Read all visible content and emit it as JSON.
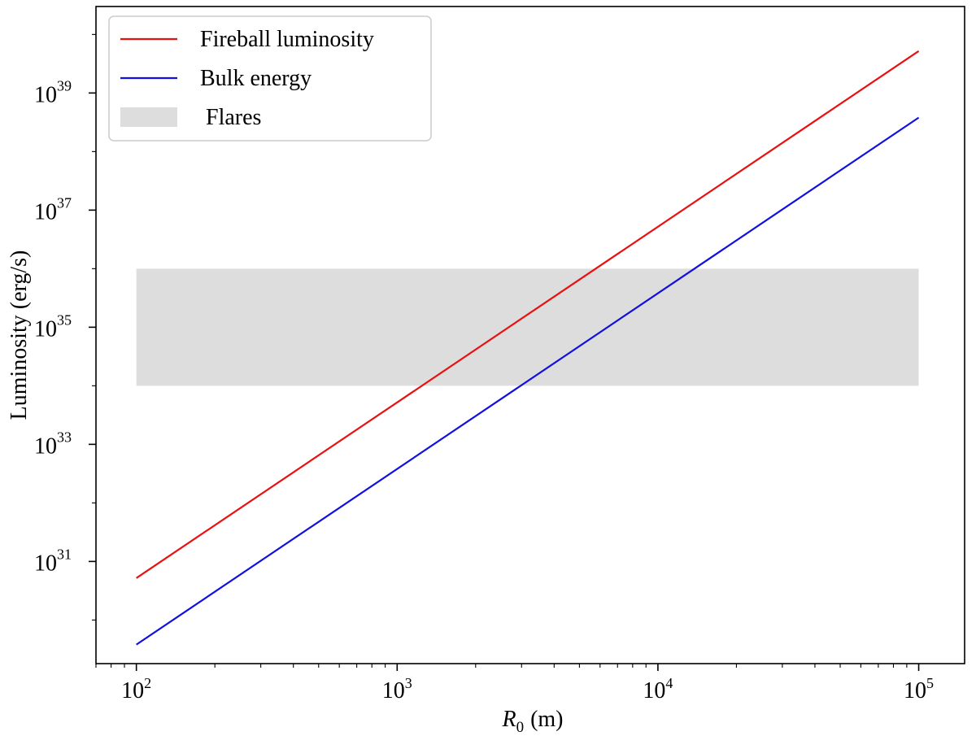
{
  "chart_data": {
    "type": "line",
    "xscale": "log",
    "yscale": "log",
    "xlabel": "R",
    "xlabel_sub": "0",
    "xlabel_unit": "(m)",
    "ylabel": "Luminosity (erg/s)",
    "xlim": [
      70,
      150000
    ],
    "ylim": [
      1.8e+29,
      3e+40
    ],
    "x_ticks": [
      {
        "value": 100,
        "base": "10",
        "exp": "2"
      },
      {
        "value": 1000,
        "base": "10",
        "exp": "3"
      },
      {
        "value": 10000,
        "base": "10",
        "exp": "4"
      },
      {
        "value": 100000,
        "base": "10",
        "exp": "5"
      }
    ],
    "y_ticks": [
      {
        "value": 1e+31,
        "base": "10",
        "exp": "31"
      },
      {
        "value": 1e+33,
        "base": "10",
        "exp": "33"
      },
      {
        "value": 1e+35,
        "base": "10",
        "exp": "35"
      },
      {
        "value": 1e+37,
        "base": "10",
        "exp": "37"
      },
      {
        "value": 1e+39,
        "base": "10",
        "exp": "39"
      }
    ],
    "series": [
      {
        "name": "Fireball luminosity",
        "color": "#e8110f",
        "x": [
          100,
          100000
        ],
        "y": [
          5.2e+30,
          5.2e+39
        ]
      },
      {
        "name": "Bulk energy",
        "color": "#1010e0",
        "x": [
          100,
          100000
        ],
        "y": [
          3.8e+29,
          3.8e+38
        ]
      }
    ],
    "band": {
      "name": "Flares",
      "color": "#dddddd",
      "x": [
        100,
        100000
      ],
      "y": [
        1e+34,
        1e+36
      ]
    },
    "legend": {
      "position": "top-left",
      "entries": [
        {
          "label": "Fireball luminosity",
          "kind": "line",
          "color": "#e8110f"
        },
        {
          "label": "Bulk energy",
          "kind": "line",
          "color": "#1010e0"
        },
        {
          "label": " Flares",
          "kind": "patch",
          "color": "#dddddd"
        }
      ]
    },
    "grid": false
  }
}
